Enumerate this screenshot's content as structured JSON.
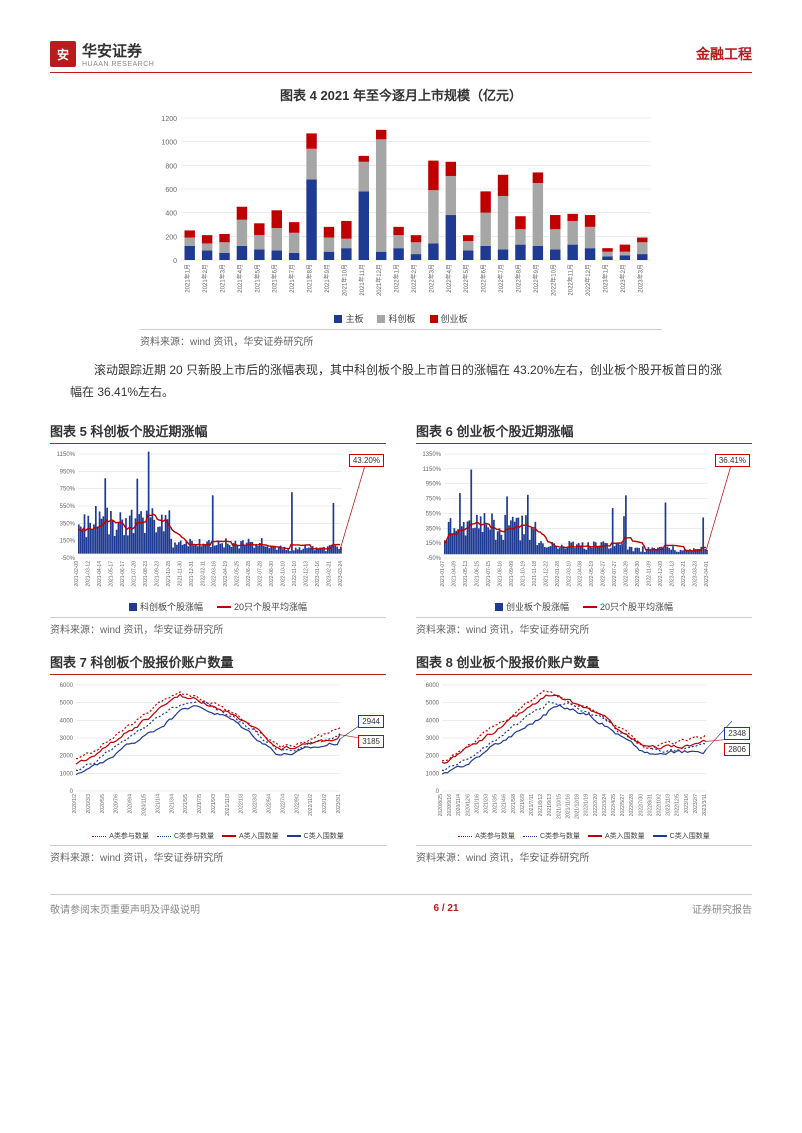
{
  "header": {
    "logo_char": "安",
    "company_cn": "华安证券",
    "company_en": "HUAAN RESEARCH",
    "category": "金融工程"
  },
  "chart4": {
    "title": "图表 4 2021 年至今逐月上市规模（亿元）",
    "type": "bar",
    "ylim": [
      0,
      1200
    ],
    "ytick_step": 200,
    "categories": [
      "2021年1月",
      "2021年2月",
      "2021年3月",
      "2021年4月",
      "2021年5月",
      "2021年6月",
      "2021年7月",
      "2021年8月",
      "2021年9月",
      "2021年10月",
      "2021年11月",
      "2021年12月",
      "2022年1月",
      "2022年2月",
      "2022年3月",
      "2022年4月",
      "2022年5月",
      "2022年6月",
      "2022年7月",
      "2022年8月",
      "2022年9月",
      "2022年10月",
      "2022年11月",
      "2022年12月",
      "2023年1月",
      "2023年2月",
      "2023年3月"
    ],
    "series": [
      {
        "name": "主板",
        "color": "#1f3a93",
        "values": [
          120,
          80,
          60,
          120,
          90,
          80,
          60,
          680,
          70,
          100,
          580,
          70,
          100,
          50,
          140,
          380,
          80,
          120,
          90,
          130,
          120,
          90,
          130,
          100,
          30,
          40,
          50
        ]
      },
      {
        "name": "科创板",
        "color": "#a6a6a6",
        "values": [
          70,
          60,
          90,
          220,
          120,
          190,
          170,
          260,
          120,
          80,
          250,
          950,
          110,
          100,
          450,
          330,
          80,
          280,
          450,
          130,
          530,
          170,
          200,
          180,
          40,
          30,
          100
        ]
      },
      {
        "name": "创业板",
        "color": "#c00000",
        "values": [
          60,
          70,
          70,
          110,
          100,
          150,
          90,
          130,
          90,
          150,
          50,
          80,
          70,
          60,
          250,
          120,
          50,
          180,
          180,
          110,
          90,
          120,
          60,
          100,
          30,
          60,
          40
        ]
      }
    ],
    "legend": [
      "主板",
      "科创板",
      "创业板"
    ],
    "legend_colors": [
      "#1f3a93",
      "#a6a6a6",
      "#c00000"
    ],
    "source": "资料来源：wind 资讯，华安证券研究所",
    "grid_color": "#d9d9d9",
    "bg_color": "#ffffff",
    "label_fontsize": 7
  },
  "body_text": "滚动跟踪近期 20 只新股上市后的涨幅表现，其中科创板个股上市首日的涨幅在 43.20%左右，创业板个股开板首日的涨幅在 36.41%左右。",
  "chart5": {
    "title": "图表 5  科创板个股近期涨幅",
    "type": "bar+line",
    "ylim": [
      -50,
      1150
    ],
    "yticks": [
      -50,
      150,
      350,
      550,
      750,
      950,
      1150
    ],
    "callout": "43.20%",
    "x_labels": [
      "2021-02-09",
      "2021-03-12",
      "2021-04-14",
      "2021-05-17",
      "2021-06-17",
      "2021-07-20",
      "2021-08-23",
      "2021-09-23",
      "2021-10-28",
      "2021-11-30",
      "2021-12-31",
      "2022-02-11",
      "2022-03-16",
      "2022-04-19",
      "2022-05-25",
      "2022-06-28",
      "2022-07-28",
      "2022-08-30",
      "2022-10-10",
      "2022-11-10",
      "2022-12-13",
      "2023-01-16",
      "2023-02-21",
      "2023-03-24"
    ],
    "bar_color": "#1f3a93",
    "line_color": "#c00000",
    "legend": [
      "科创板个股涨幅",
      "20只个股平均涨幅"
    ],
    "source": "资料来源：wind 资讯，华安证券研究所",
    "grid_color": "#d9d9d9"
  },
  "chart6": {
    "title": "图表 6  创业板个股近期涨幅",
    "type": "bar+line",
    "ylim": [
      -50,
      1350
    ],
    "yticks": [
      -50,
      150,
      350,
      550,
      750,
      950,
      1150,
      1350
    ],
    "callout": "36.41%",
    "x_labels": [
      "2021-01-07",
      "2021-04-09",
      "2021-05-13",
      "2021-06-15",
      "2021-07-15",
      "2021-08-16",
      "2021-09-09",
      "2021-10-19",
      "2021-11-18",
      "2021-12-22",
      "2022-01-28",
      "2022-03-10",
      "2022-04-08",
      "2022-05-19",
      "2022-06-27",
      "2022-07-27",
      "2022-08-29",
      "2022-09-30",
      "2022-11-09",
      "2022-12-09",
      "2023-01-13",
      "2023-02-21",
      "2023-03-23",
      "2023-04-01"
    ],
    "bar_color": "#1f3a93",
    "line_color": "#c00000",
    "legend": [
      "创业板个股涨幅",
      "20只个股平均涨幅"
    ],
    "source": "资料来源：wind 资讯，华安证券研究所",
    "grid_color": "#d9d9d9"
  },
  "chart7": {
    "title": "图表 7  科创板个股报价账户数量",
    "type": "line",
    "ylim": [
      0,
      6000
    ],
    "ytick_step": 1000,
    "callout1": "2944",
    "callout2": "3185",
    "x_labels": [
      "2020/1/2",
      "2020/3/3",
      "2020/5/5",
      "2020/7/6",
      "2020/9/4",
      "2020/11/5",
      "2021/1/4",
      "2021/3/4",
      "2021/5/5",
      "2021/7/5",
      "2021/9/3",
      "2021/11/3",
      "2022/1/3",
      "2022/3/3",
      "2022/5/4",
      "2022/7/4",
      "2022/9/2",
      "2022/11/2",
      "2023/1/2",
      "2023/3/1"
    ],
    "series": [
      {
        "name": "A类参与数量",
        "style": "dotted",
        "color": "#c00000"
      },
      {
        "name": "C类参与数量",
        "style": "dotted",
        "color": "#1f3a93"
      },
      {
        "name": "A类入围数量",
        "style": "solid",
        "color": "#c00000"
      },
      {
        "name": "C类入围数量",
        "style": "solid",
        "color": "#1f3a93"
      }
    ],
    "source": "资料来源：wind 资讯，华安证券研究所",
    "grid_color": "#d9d9d9"
  },
  "chart8": {
    "title": "图表 8  创业板个股报价账户数量",
    "type": "line",
    "ylim": [
      0,
      6000
    ],
    "ytick_step": 1000,
    "callout1": "2348",
    "callout2": "2806",
    "x_labels": [
      "2020/8/25",
      "2020/9/16",
      "2020/11/4",
      "2020/12/6",
      "2021/1/6",
      "2021/2/3",
      "2021/3/5",
      "2021/4/6",
      "2021/5/8",
      "2021/6/9",
      "2021/7/11",
      "2021/8/12",
      "2021/9/13",
      "2021/10/15",
      "2021/11/16",
      "2021/12/18",
      "2022/1/19",
      "2022/2/20",
      "2022/3/24",
      "2022/4/25",
      "2022/5/27",
      "2022/6/28",
      "2022/7/30",
      "2022/8/31",
      "2022/10/2",
      "2022/11/3",
      "2022/12/5",
      "2023/1/6",
      "2023/2/7",
      "2023/3/11"
    ],
    "series": [
      {
        "name": "A类参与数量",
        "style": "dotted",
        "color": "#c00000"
      },
      {
        "name": "C类参与数量",
        "style": "dotted",
        "color": "#1f3a93"
      },
      {
        "name": "A类入围数量",
        "style": "solid",
        "color": "#c00000"
      },
      {
        "name": "C类入围数量",
        "style": "solid",
        "color": "#1f3a93"
      }
    ],
    "source": "资料来源：wind 资讯，华安证券研究所",
    "grid_color": "#d9d9d9"
  },
  "footer": {
    "left": "敬请参阅末页重要声明及评级说明",
    "center": "6 / 21",
    "right": "证券研究报告"
  }
}
